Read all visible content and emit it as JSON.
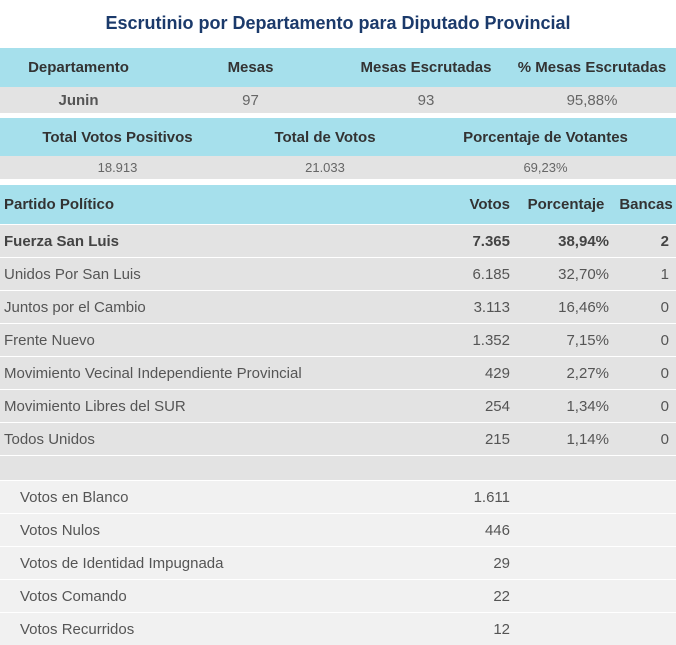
{
  "title": "Escrutinio por Departamento para Diputado Provincial",
  "summary": {
    "headers": [
      "Departamento",
      "Mesas",
      "Mesas Escrutadas",
      "% Mesas Escrutadas"
    ],
    "values": [
      "Junin",
      "97",
      "93",
      "95,88%"
    ]
  },
  "totals": {
    "headers": [
      "Total Votos Positivos",
      "Total de Votos",
      "Porcentaje de Votantes"
    ],
    "values": [
      "18.913",
      "21.033",
      "69,23%"
    ]
  },
  "results": {
    "headers": [
      "Partido Político",
      "Votos",
      "Porcentaje",
      "Bancas"
    ],
    "parties": [
      {
        "name": "Fuerza San Luis",
        "votes": "7.365",
        "percent": "38,94%",
        "seats": "2"
      },
      {
        "name": "Unidos Por San Luis",
        "votes": "6.185",
        "percent": "32,70%",
        "seats": "1"
      },
      {
        "name": "Juntos por el Cambio",
        "votes": "3.113",
        "percent": "16,46%",
        "seats": "0"
      },
      {
        "name": "Frente Nuevo",
        "votes": "1.352",
        "percent": "7,15%",
        "seats": "0"
      },
      {
        "name": "Movimiento Vecinal Independiente Provincial",
        "votes": "429",
        "percent": "2,27%",
        "seats": "0"
      },
      {
        "name": "Movimiento Libres del SUR",
        "votes": "254",
        "percent": "1,34%",
        "seats": "0"
      },
      {
        "name": "Todos Unidos",
        "votes": "215",
        "percent": "1,14%",
        "seats": "0"
      }
    ],
    "other_votes": [
      {
        "name": "Votos en Blanco",
        "votes": "1.611"
      },
      {
        "name": "Votos Nulos",
        "votes": "446"
      },
      {
        "name": "Votos de Identidad Impugnada",
        "votes": "29"
      },
      {
        "name": "Votos Comando",
        "votes": "22"
      },
      {
        "name": "Votos Recurridos",
        "votes": "12"
      }
    ]
  },
  "colors": {
    "header_bg": "#a6e0ec",
    "row_bg": "#e3e3e3",
    "title": "#1b3a6b"
  }
}
